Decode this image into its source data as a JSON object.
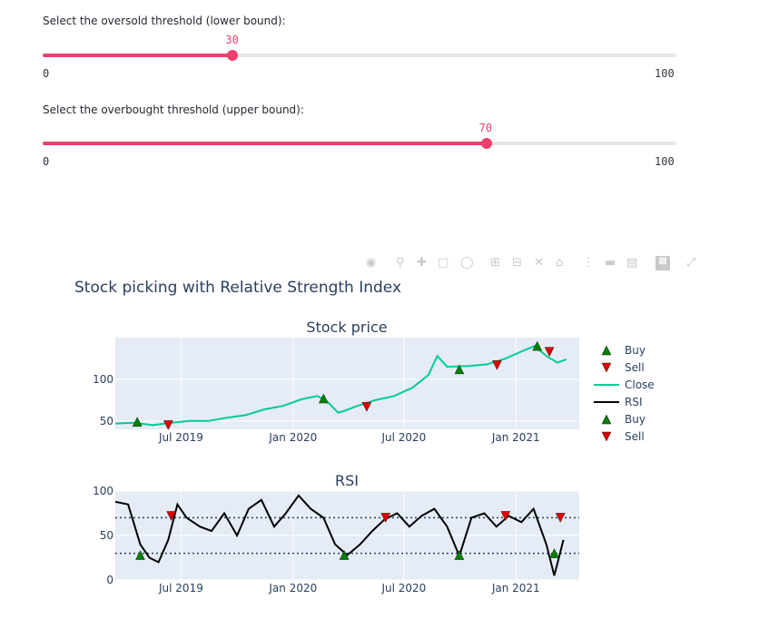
{
  "slider_lower": {
    "label": "Select the oversold threshold (lower bound):",
    "value": "30",
    "fraction": 0.3,
    "min": "0",
    "max": "100"
  },
  "slider_upper": {
    "label": "Select the overbought threshold (upper bound):",
    "value": "70",
    "fraction": 0.7,
    "min": "0",
    "max": "100"
  },
  "toolbar": {
    "icons": [
      "camera-icon",
      "zoom-icon",
      "pan-icon",
      "box-select-icon",
      "lasso-icon",
      "zoom-in-icon",
      "zoom-out-icon",
      "autoscale-icon",
      "reset-axes-icon",
      "spike-lines-icon",
      "hover-closest-icon",
      "hover-compare-icon",
      "plotly-logo-icon",
      "fullscreen-icon"
    ]
  },
  "colors": {
    "accent": "#ee3e6b",
    "track": "#e6e6e6",
    "close": "#00cc96",
    "rsi": "#000000",
    "buy": "#008000",
    "sell": "#e00000",
    "plot_bg": "#e5ecf6"
  },
  "chart_data": [
    {
      "type": "line",
      "title": "Stock price",
      "figure_title": "Stock picking with Relative Strength Index",
      "x_ticks": [
        "Jul 2019",
        "Jan 2020",
        "Jul 2020",
        "Jan 2021"
      ],
      "y_ticks": [
        "50",
        "100"
      ],
      "ylim": [
        40,
        150
      ],
      "xlim": [
        "2019-03-15",
        "2021-04-15"
      ],
      "series": [
        {
          "name": "Close",
          "x": [
            "2019-03-15",
            "2019-04-15",
            "2019-05-15",
            "2019-06-15",
            "2019-07-15",
            "2019-08-15",
            "2019-09-15",
            "2019-10-15",
            "2019-11-15",
            "2019-12-15",
            "2020-01-15",
            "2020-02-10",
            "2020-02-25",
            "2020-03-15",
            "2020-03-25",
            "2020-04-15",
            "2020-05-15",
            "2020-06-15",
            "2020-07-15",
            "2020-08-10",
            "2020-08-25",
            "2020-09-10",
            "2020-10-15",
            "2020-11-15",
            "2020-12-15",
            "2021-01-15",
            "2021-02-01",
            "2021-02-20",
            "2021-03-10",
            "2021-03-25"
          ],
          "values": [
            47,
            48,
            45,
            48,
            50,
            50,
            54,
            57,
            64,
            68,
            76,
            80,
            74,
            60,
            62,
            68,
            75,
            80,
            90,
            105,
            128,
            115,
            116,
            118,
            125,
            135,
            140,
            128,
            120,
            124
          ]
        },
        {
          "name": "Buy",
          "marker": "triangle-up",
          "x": [
            "2019-04-20",
            "2020-02-20",
            "2020-09-30",
            "2021-02-05"
          ],
          "values": [
            49,
            77,
            112,
            140
          ]
        },
        {
          "name": "Sell",
          "marker": "triangle-down",
          "x": [
            "2019-06-10",
            "2020-05-01",
            "2020-12-01",
            "2021-02-25"
          ],
          "values": [
            45,
            67,
            117,
            133
          ]
        }
      ],
      "legend": [
        "Buy",
        "Sell",
        "Close",
        "RSI",
        "Buy",
        "Sell"
      ],
      "legend_position": "right"
    },
    {
      "type": "line",
      "title": "RSI",
      "x_ticks": [
        "Jul 2019",
        "Jan 2020",
        "Jul 2020",
        "Jan 2021"
      ],
      "y_ticks": [
        "0",
        "50",
        "100"
      ],
      "ylim": [
        0,
        100
      ],
      "thresholds": [
        30,
        70
      ],
      "series": [
        {
          "name": "RSI",
          "x": [
            "2019-03-15",
            "2019-04-05",
            "2019-04-25",
            "2019-05-10",
            "2019-05-25",
            "2019-06-10",
            "2019-06-25",
            "2019-07-10",
            "2019-08-01",
            "2019-08-20",
            "2019-09-10",
            "2019-10-01",
            "2019-10-20",
            "2019-11-10",
            "2019-12-01",
            "2019-12-20",
            "2020-01-10",
            "2020-01-30",
            "2020-02-20",
            "2020-03-10",
            "2020-03-30",
            "2020-04-20",
            "2020-05-10",
            "2020-05-30",
            "2020-06-20",
            "2020-07-10",
            "2020-07-30",
            "2020-08-20",
            "2020-09-10",
            "2020-09-30",
            "2020-10-20",
            "2020-11-10",
            "2020-11-30",
            "2020-12-20",
            "2021-01-10",
            "2021-01-30",
            "2021-02-20",
            "2021-03-05",
            "2021-03-20"
          ],
          "values": [
            88,
            85,
            40,
            25,
            20,
            45,
            85,
            70,
            60,
            55,
            75,
            50,
            80,
            90,
            60,
            75,
            95,
            80,
            70,
            40,
            28,
            40,
            55,
            68,
            75,
            60,
            72,
            80,
            60,
            27,
            70,
            75,
            60,
            72,
            65,
            80,
            40,
            5,
            45
          ]
        },
        {
          "name": "Buy",
          "marker": "triangle-up",
          "x": [
            "2019-04-25",
            "2020-03-25",
            "2020-09-30",
            "2021-03-05"
          ],
          "values": [
            28,
            28,
            28,
            30
          ]
        },
        {
          "name": "Sell",
          "marker": "triangle-down",
          "x": [
            "2019-06-15",
            "2020-06-01",
            "2020-12-15",
            "2021-03-15"
          ],
          "values": [
            72,
            70,
            72,
            70
          ]
        }
      ]
    }
  ]
}
